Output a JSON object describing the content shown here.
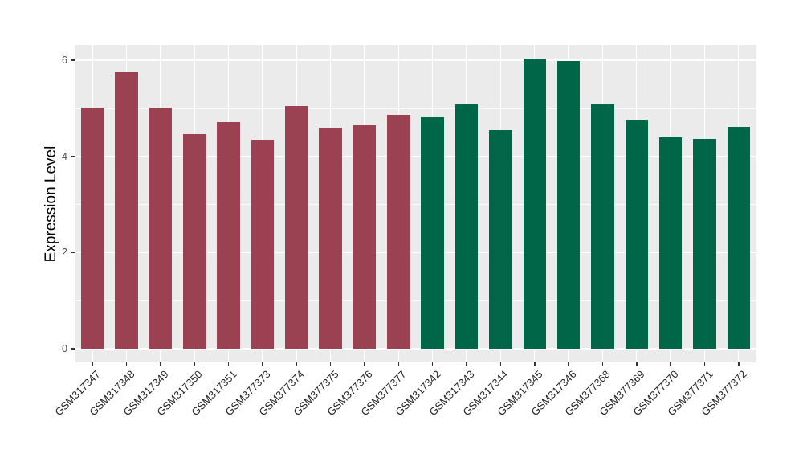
{
  "chart_data": {
    "type": "bar",
    "title": "",
    "xlabel": "",
    "ylabel": "Expression Level",
    "ylim": [
      0,
      6.32
    ],
    "yticks": [
      0,
      2,
      4,
      6
    ],
    "yticks_minor": [
      1,
      3,
      5
    ],
    "grid": "white major and minor gridlines on gray panel",
    "legend_position": "none",
    "categories": [
      "GSM317347",
      "GSM317348",
      "GSM317349",
      "GSM317350",
      "GSM317351",
      "GSM377373",
      "GSM377374",
      "GSM377375",
      "GSM377376",
      "GSM377377",
      "GSM317342",
      "GSM317343",
      "GSM317344",
      "GSM317345",
      "GSM317346",
      "GSM377368",
      "GSM377369",
      "GSM377370",
      "GSM377371",
      "GSM377372"
    ],
    "values": [
      5.01,
      5.76,
      5.01,
      4.47,
      4.72,
      4.35,
      5.05,
      4.59,
      4.65,
      4.86,
      4.81,
      5.08,
      4.55,
      6.01,
      5.99,
      5.08,
      4.77,
      4.4,
      4.37,
      4.62
    ],
    "bar_groups": [
      "group1",
      "group1",
      "group1",
      "group1",
      "group1",
      "group1",
      "group1",
      "group1",
      "group1",
      "group1",
      "group2",
      "group2",
      "group2",
      "group2",
      "group2",
      "group2",
      "group2",
      "group2",
      "group2",
      "group2"
    ],
    "group_colors": {
      "group1": "#9A4252",
      "group2": "#006648"
    }
  },
  "axis": {
    "y_tick_labels": [
      "0",
      "2",
      "4",
      "6"
    ]
  },
  "colors": {
    "page_background": "#FFFFFF",
    "panel_background": "#EBEBEB",
    "gridline": "#FFFFFF",
    "y_axis_text": "#4D4D4D",
    "x_axis_text": "#222222",
    "axis_title": "#000000",
    "tick_mark": "#333333"
  }
}
